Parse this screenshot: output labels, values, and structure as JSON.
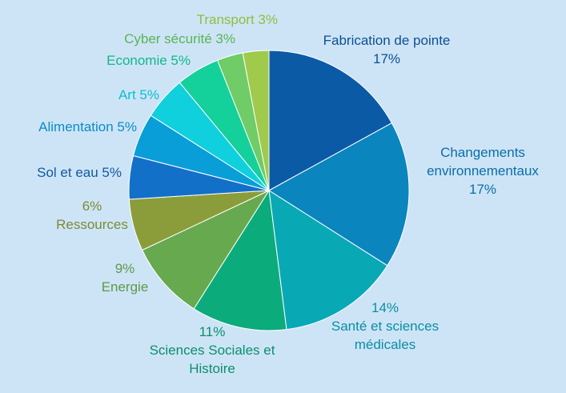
{
  "chart_data": {
    "type": "pie",
    "title": "",
    "start_angle_deg": 0,
    "direction": "clockwise",
    "slices": [
      {
        "label_lines": [
          "Fabrication de pointe"
        ],
        "value_text": "17%",
        "value": 17,
        "color": "#0b5aa6",
        "label_color": "#0d4f92"
      },
      {
        "label_lines": [
          "Changements",
          "environnementaux"
        ],
        "value_text": "17%",
        "value": 17,
        "color": "#0a85bd",
        "label_color": "#0a6fa6"
      },
      {
        "label_lines": [
          "Santé et sciences",
          "médicales"
        ],
        "value_text": "14%",
        "value": 14,
        "color": "#08a9b5",
        "label_color": "#0a8fa0"
      },
      {
        "label_lines": [
          "Sciences Sociales et",
          "Histoire"
        ],
        "value_text": "11%",
        "value": 11,
        "color": "#0cab7c",
        "label_color": "#0b8f6a"
      },
      {
        "label_lines": [
          "Energie"
        ],
        "value_text": "9%",
        "value": 9,
        "color": "#67a94f",
        "label_color": "#5e9a45"
      },
      {
        "label_lines": [
          "Ressources"
        ],
        "value_text": "6%",
        "value": 6,
        "color": "#8b9d3b",
        "label_color": "#7a8c33"
      },
      {
        "label_lines": [
          "Sol et eau"
        ],
        "value_text": "5%",
        "value": 5,
        "color": "#1370c9",
        "label_color": "#11589f"
      },
      {
        "label_lines": [
          "Alimentation"
        ],
        "value_text": "5%",
        "value": 5,
        "color": "#0a9ed8",
        "label_color": "#0a8cc3"
      },
      {
        "label_lines": [
          "Art"
        ],
        "value_text": "5%",
        "value": 5,
        "color": "#0fd0dc",
        "label_color": "#0cbfcb"
      },
      {
        "label_lines": [
          "Economie"
        ],
        "value_text": "5%",
        "value": 5,
        "color": "#14d09a",
        "label_color": "#12b886"
      },
      {
        "label_lines": [
          "Cyber sécurité"
        ],
        "value_text": "3%",
        "value": 3,
        "color": "#6fcc66",
        "label_color": "#59b552"
      },
      {
        "label_lines": [
          "Transport"
        ],
        "value_text": "3%",
        "value": 3,
        "color": "#9fca4c",
        "label_color": "#93bd40"
      }
    ]
  }
}
